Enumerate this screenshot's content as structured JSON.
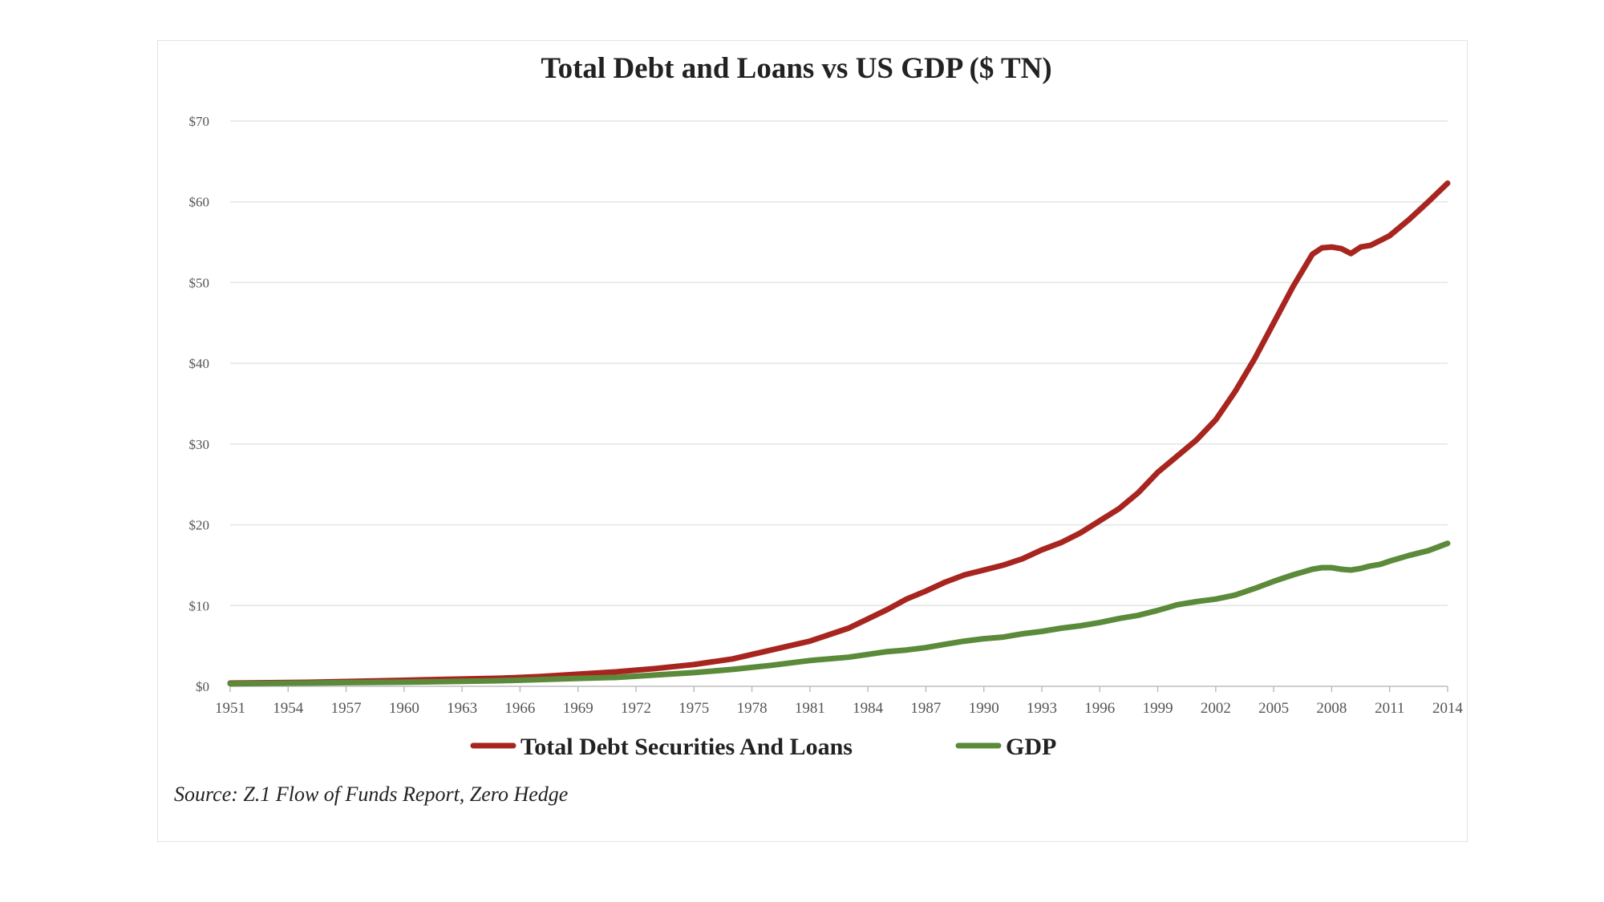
{
  "chart_data": {
    "type": "line",
    "title": "Total Debt and Loans vs US GDP ($ TN)",
    "xlabel": "",
    "ylabel": "",
    "ylim": [
      0,
      70
    ],
    "xlim": [
      1951,
      2014
    ],
    "grid": true,
    "legend_position": "bottom",
    "y_ticks": [
      "$0",
      "$10",
      "$20",
      "$30",
      "$40",
      "$50",
      "$60",
      "$70"
    ],
    "y_tick_values": [
      0,
      10,
      20,
      30,
      40,
      50,
      60,
      70
    ],
    "x_ticks": [
      "1951",
      "1954",
      "1957",
      "1960",
      "1963",
      "1966",
      "1969",
      "1972",
      "1975",
      "1978",
      "1981",
      "1984",
      "1987",
      "1990",
      "1993",
      "1996",
      "1999",
      "2002",
      "2005",
      "2008",
      "2011",
      "2014"
    ],
    "x": [
      1951,
      1953,
      1955,
      1957,
      1959,
      1961,
      1963,
      1965,
      1967,
      1969,
      1971,
      1973,
      1975,
      1977,
      1979,
      1981,
      1983,
      1985,
      1986,
      1987,
      1988,
      1989,
      1990,
      1991,
      1992,
      1993,
      1994,
      1995,
      1996,
      1997,
      1998,
      1999,
      2000,
      2001,
      2002,
      2003,
      2004,
      2005,
      2006,
      2007,
      2007.5,
      2008,
      2008.5,
      2009,
      2009.5,
      2010,
      2010.5,
      2011,
      2012,
      2013,
      2014
    ],
    "series": [
      {
        "name": "Total Debt Securities And Loans",
        "color": "#a8251f",
        "values": [
          0.4,
          0.45,
          0.5,
          0.6,
          0.7,
          0.8,
          0.9,
          1.0,
          1.2,
          1.5,
          1.8,
          2.2,
          2.7,
          3.4,
          4.5,
          5.6,
          7.2,
          9.5,
          10.8,
          11.8,
          12.9,
          13.8,
          14.4,
          15.0,
          15.8,
          16.9,
          17.8,
          19.0,
          20.5,
          22.0,
          24.0,
          26.5,
          28.5,
          30.5,
          33.0,
          36.5,
          40.5,
          45.0,
          49.5,
          53.5,
          54.3,
          54.4,
          54.2,
          53.6,
          54.4,
          54.6,
          55.2,
          55.8,
          57.8,
          60.0,
          62.3
        ]
      },
      {
        "name": "GDP",
        "color": "#5b8a3a",
        "values": [
          0.33,
          0.38,
          0.41,
          0.46,
          0.5,
          0.55,
          0.62,
          0.7,
          0.83,
          0.98,
          1.1,
          1.4,
          1.7,
          2.1,
          2.6,
          3.2,
          3.6,
          4.3,
          4.5,
          4.8,
          5.2,
          5.6,
          5.9,
          6.1,
          6.5,
          6.8,
          7.2,
          7.5,
          7.9,
          8.4,
          8.8,
          9.4,
          10.1,
          10.5,
          10.8,
          11.3,
          12.1,
          13.0,
          13.8,
          14.5,
          14.7,
          14.7,
          14.5,
          14.4,
          14.6,
          14.9,
          15.1,
          15.5,
          16.2,
          16.8,
          17.7
        ]
      }
    ],
    "source_note": "Source: Z.1 Flow of Funds Report, Zero Hedge"
  }
}
